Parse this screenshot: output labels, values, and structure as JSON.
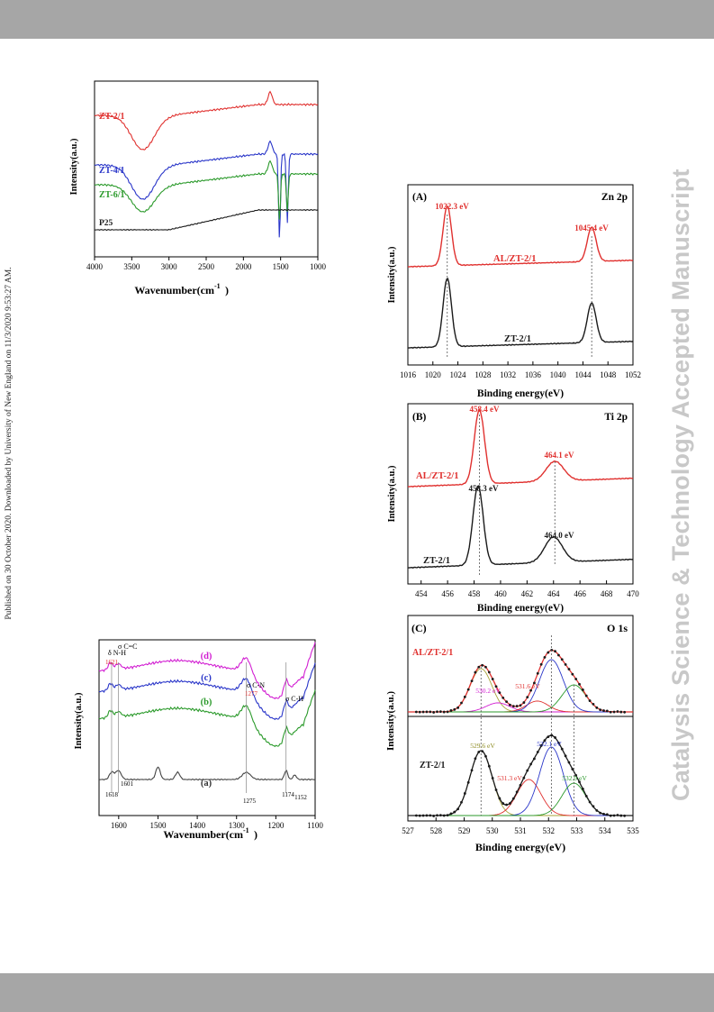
{
  "sidebar": {
    "published_note": "Published on 30 October 2020. Downloaded by University of New England on 11/3/2020 9:53:27 AM.",
    "journal_watermark": "Catalysis Science & Technology Accepted Manuscript"
  },
  "colors": {
    "red": "#e0312f",
    "blue": "#2a36c9",
    "green": "#2b9a2b",
    "black": "#1a1a1a",
    "magenta": "#d21fd2",
    "olive": "#a8a43a",
    "bar_gray": "#a6a6a6",
    "watermark_gray": "#c8c8c8"
  },
  "chart_data": [
    {
      "id": "ftir",
      "type": "line",
      "xlabel": "Wavenumber(cm",
      "xlabel_sup": "-1",
      "xlabel_close": ")",
      "ylabel": "Intensity(a.u.)",
      "xlim": [
        4000,
        1000
      ],
      "xticks": [
        "4000",
        "3500",
        "3000",
        "2500",
        "2000",
        "1500",
        "1000"
      ],
      "series": [
        {
          "name": "ZT-2/1",
          "color": "#e0312f"
        },
        {
          "name": "ZT-4/1",
          "color": "#2a36c9"
        },
        {
          "name": "ZT-6/1",
          "color": "#2b9a2b"
        },
        {
          "name": "P25",
          "color": "#1a1a1a"
        }
      ]
    },
    {
      "id": "zn2p",
      "type": "line",
      "panel": "(A)",
      "element": "Zn 2p",
      "xlabel": "Binding energy(eV)",
      "ylabel": "Intensity(a.u.)",
      "xlim": [
        1016,
        1052
      ],
      "xticks": [
        "1016",
        "1020",
        "1024",
        "1028",
        "1032",
        "1036",
        "1040",
        "1044",
        "1048",
        "1052"
      ],
      "series": [
        {
          "name": "AL/ZT-2/1",
          "color": "#e0312f",
          "peaks": [
            {
              "label": "1022.3 eV",
              "x": 1022.3
            },
            {
              "label": "1045.4 eV",
              "x": 1045.4
            }
          ]
        },
        {
          "name": "ZT-2/1",
          "color": "#1a1a1a",
          "peaks": [
            {
              "x": 1022.3
            },
            {
              "x": 1045.4
            }
          ]
        }
      ]
    },
    {
      "id": "ti2p",
      "type": "line",
      "panel": "(B)",
      "element": "Ti 2p",
      "xlabel": "Binding energy(eV)",
      "ylabel": "Intensity(a.u.)",
      "xlim": [
        453,
        470
      ],
      "xticks": [
        "454",
        "456",
        "458",
        "460",
        "462",
        "464",
        "466",
        "468",
        "470"
      ],
      "series": [
        {
          "name": "AL/ZT-2/1",
          "color": "#e0312f",
          "peaks": [
            {
              "label": "458.4 eV",
              "x": 458.4
            },
            {
              "label": "464.1 eV",
              "x": 464.1
            }
          ]
        },
        {
          "name": "ZT-2/1",
          "color": "#1a1a1a",
          "peaks": [
            {
              "label": "458.3 eV",
              "x": 458.3
            },
            {
              "label": "464.0 eV",
              "x": 464.0
            }
          ]
        }
      ]
    },
    {
      "id": "o1s",
      "type": "line",
      "panel": "(C)",
      "element": "O 1s",
      "xlabel": "Binding energy(eV)",
      "ylabel": "Intensity(a.u.)",
      "xlim": [
        527,
        535
      ],
      "xticks": [
        "527",
        "528",
        "529",
        "530",
        "531",
        "532",
        "533",
        "534",
        "535"
      ],
      "series": [
        {
          "name": "AL/ZT-2/1",
          "peaks": [
            {
              "label": "530.2 eV",
              "x": 530.2
            },
            {
              "label": "531.6 eV",
              "x": 531.6
            }
          ]
        },
        {
          "name": "ZT-2/1",
          "peaks": [
            {
              "label": "529.6 eV",
              "x": 529.6
            },
            {
              "label": "531.3 eV",
              "x": 531.3
            },
            {
              "label": "532.1 eV",
              "x": 532.1
            },
            {
              "label": "532.9 eV",
              "x": 532.9
            }
          ]
        }
      ]
    },
    {
      "id": "ftir_zoom",
      "type": "line",
      "xlabel": "Wavenumber(cm",
      "xlabel_sup": "-1",
      "xlabel_close": ")",
      "ylabel": "Intensity(a.u.)",
      "xlim": [
        1650,
        1100
      ],
      "xticks": [
        "1600",
        "1500",
        "1400",
        "1300",
        "1200",
        "1100"
      ],
      "series": [
        {
          "name": "(d)",
          "color": "#d21fd2"
        },
        {
          "name": "(c)",
          "color": "#2a36c9"
        },
        {
          "name": "(b)",
          "color": "#2b9a2b"
        },
        {
          "name": "(a)",
          "color": "#444444"
        }
      ],
      "annotations": [
        {
          "text": "δ N-H",
          "x": 1618
        },
        {
          "text": "σ C=C",
          "x": 1601
        },
        {
          "text": "1621",
          "x": 1621
        },
        {
          "text": "1277",
          "x": 1277
        },
        {
          "text": "σ C-N",
          "x": 1275
        },
        {
          "text": "σ C-H",
          "x": 1174
        },
        {
          "text": "1618",
          "x": 1618
        },
        {
          "text": "1601",
          "x": 1601
        },
        {
          "text": "1275",
          "x": 1275
        },
        {
          "text": "1174",
          "x": 1174
        },
        {
          "text": "1152",
          "x": 1152
        }
      ]
    }
  ]
}
